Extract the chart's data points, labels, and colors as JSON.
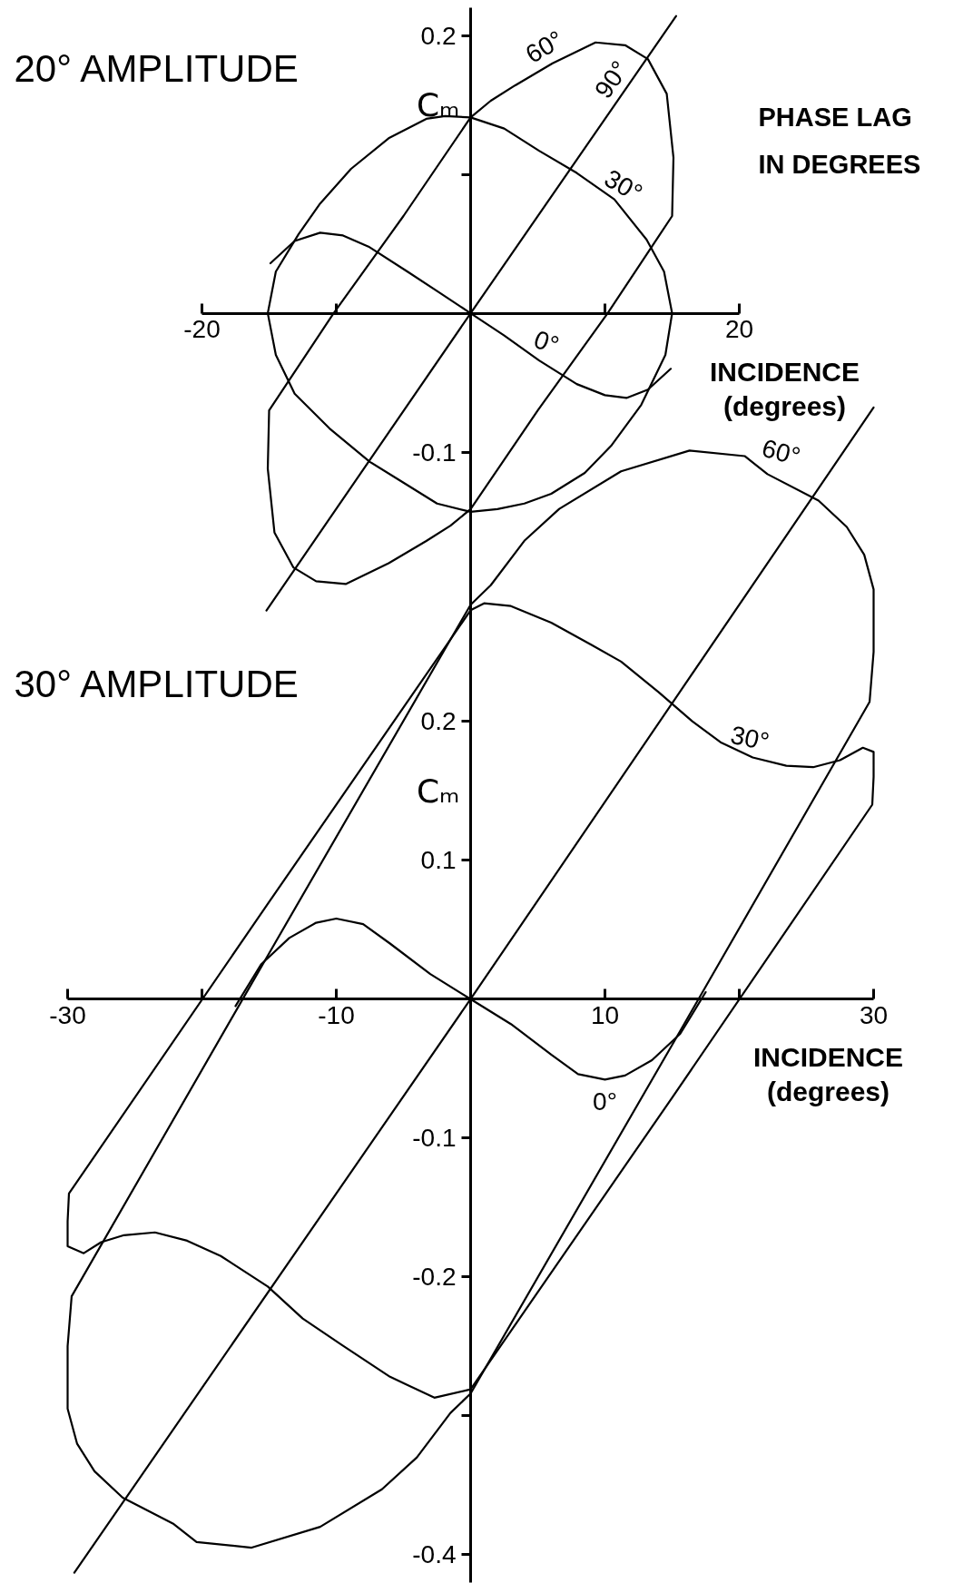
{
  "chart_data": [
    {
      "type": "line",
      "title": "20° AMPLITUDE",
      "xlabel": "INCIDENCE\n(degrees)",
      "ylabel": "Cₘ",
      "annotations": [
        "PHASE LAG\nIN DEGREES"
      ],
      "xlim": [
        -20,
        20
      ],
      "xticks": [
        -20,
        {
          "value": -10,
          "label": null
        },
        {
          "value": 10,
          "label": null
        },
        20
      ],
      "ylim": [
        -0.22,
        0.22
      ],
      "yticks": [
        0.2,
        {
          "value": 0.1,
          "label": null
        },
        -0.1
      ],
      "series": [
        {
          "name": "0°",
          "color": "#000000",
          "x": [
            -14.9,
            -13.1,
            -11.2,
            -9.5,
            -7.6,
            -4.7,
            -2.5,
            0,
            2.5,
            5.1,
            7.9,
            10,
            11.6,
            13.2,
            14.9
          ],
          "values": [
            0.036,
            0.052,
            0.058,
            0.056,
            0.048,
            0.03,
            0.016,
            0,
            -0.016,
            -0.034,
            -0.051,
            -0.059,
            -0.061,
            -0.055,
            -0.04
          ]
        },
        {
          "name": "30°",
          "color": "#000000",
          "x": [
            -15.1,
            -14.5,
            -12.8,
            -11.2,
            -8.9,
            -6.1,
            -3.3,
            -1.9,
            0,
            2.5,
            5.1,
            7.9,
            10.7,
            13.1,
            14.4,
            15,
            14.5,
            12.7,
            10.5,
            8.5,
            6,
            4,
            2,
            0,
            -2.5,
            -5,
            -7.5,
            -10.5,
            -13.1,
            -14.5,
            -15.1,
            -14.5
          ],
          "values": [
            0,
            0.03,
            0.057,
            0.079,
            0.104,
            0.126,
            0.14,
            0.142,
            0.141,
            0.133,
            0.117,
            0.101,
            0.082,
            0.053,
            0.03,
            0,
            -0.03,
            -0.066,
            -0.095,
            -0.115,
            -0.13,
            -0.137,
            -0.141,
            -0.143,
            -0.137,
            -0.122,
            -0.107,
            -0.083,
            -0.058,
            -0.03,
            0,
            0.03
          ]
        },
        {
          "name": "60°",
          "color": "#000000",
          "x": [
            -15,
            -10.2,
            -5,
            0,
            1.5,
            3.3,
            6.1,
            9.3,
            11.5,
            13.2,
            14.6,
            15.1,
            15,
            10.2,
            5,
            0,
            -1.5,
            -3.3,
            -6.1,
            -9.3,
            -11.5,
            -13.2,
            -14.6,
            -15.1,
            -15,
            -10.2
          ],
          "values": [
            -0.07,
            0,
            0.07,
            0.141,
            0.153,
            0.164,
            0.18,
            0.195,
            0.193,
            0.183,
            0.158,
            0.112,
            0.07,
            0,
            -0.07,
            -0.141,
            -0.153,
            -0.164,
            -0.18,
            -0.195,
            -0.193,
            -0.183,
            -0.158,
            -0.112,
            -0.07,
            0
          ]
        },
        {
          "name": "90°",
          "color": "#000000",
          "x": [
            -15.2,
            0,
            15.3
          ],
          "values": [
            -0.214,
            0,
            0.214
          ]
        }
      ]
    },
    {
      "type": "line",
      "title": "30° AMPLITUDE",
      "xlabel": "INCIDENCE\n(degrees)",
      "ylabel": "Cₘ",
      "xlim": [
        -30,
        30
      ],
      "xticks": [
        -30,
        {
          "value": -20,
          "label": null
        },
        -10,
        10,
        {
          "value": 20,
          "label": null
        },
        30
      ],
      "ylim": [
        -0.42,
        0.44
      ],
      "yticks": [
        0.2,
        0.1,
        -0.1,
        -0.2,
        {
          "value": -0.3,
          "label": null
        },
        -0.4
      ],
      "series": [
        {
          "name": "0°",
          "color": "#000000",
          "x": [
            -17.5,
            -15.6,
            -13.5,
            -11.5,
            -10,
            -8,
            -6,
            -3,
            0,
            3,
            6,
            8,
            10,
            11.5,
            13.5,
            15.6,
            17.5
          ],
          "values": [
            -0.005,
            0.025,
            0.044,
            0.055,
            0.058,
            0.054,
            0.04,
            0.018,
            0,
            -0.018,
            -0.04,
            -0.054,
            -0.058,
            -0.055,
            -0.044,
            -0.025,
            0.005
          ]
        },
        {
          "name": "30°",
          "color": "#000000",
          "x": [
            0,
            1,
            3,
            6,
            9,
            11.2,
            14,
            16.5,
            18.6,
            21,
            23.5,
            25.5,
            27.5,
            29.2,
            30,
            30,
            29.9,
            15,
            0,
            -2.7,
            -6,
            -9.6,
            -12.5,
            -15.1,
            -18.6,
            -21.1,
            -23.5,
            -25.8,
            -27.5,
            -28.8,
            -30,
            -30,
            -29.9,
            -15,
            0,
            1
          ],
          "values": [
            0.28,
            0.285,
            0.283,
            0.271,
            0.255,
            0.243,
            0.221,
            0.2,
            0.185,
            0.174,
            0.168,
            0.167,
            0.172,
            0.181,
            0.178,
            0.16,
            0.14,
            -0.071,
            -0.281,
            -0.287,
            -0.272,
            -0.249,
            -0.23,
            -0.207,
            -0.185,
            -0.174,
            -0.168,
            -0.17,
            -0.175,
            -0.183,
            -0.178,
            -0.16,
            -0.14,
            0.07,
            0.28,
            0.285
          ]
        },
        {
          "name": "60°",
          "color": "#000000",
          "x": [
            -29.7,
            -15,
            0,
            1.5,
            4,
            6.6,
            11.2,
            16.3,
            20.4,
            22.1,
            25.9,
            28,
            29.3,
            30,
            30,
            29.7,
            15,
            0,
            -1.5,
            -4,
            -6.6,
            -11.2,
            -16.3,
            -20.4,
            -22.1,
            -25.9,
            -28,
            -29.3,
            -30,
            -30,
            -29.7,
            -15
          ],
          "values": [
            -0.214,
            0.033,
            0.284,
            0.298,
            0.33,
            0.353,
            0.38,
            0.395,
            0.391,
            0.378,
            0.359,
            0.34,
            0.32,
            0.295,
            0.25,
            0.214,
            -0.033,
            -0.284,
            -0.298,
            -0.33,
            -0.353,
            -0.38,
            -0.395,
            -0.391,
            -0.378,
            -0.359,
            -0.34,
            -0.32,
            -0.295,
            -0.25,
            -0.214,
            0.033
          ]
        },
        {
          "color": "#000000",
          "x": [
            -29.5,
            0,
            30
          ],
          "values": [
            -0.413,
            0,
            0.426
          ]
        }
      ]
    }
  ]
}
